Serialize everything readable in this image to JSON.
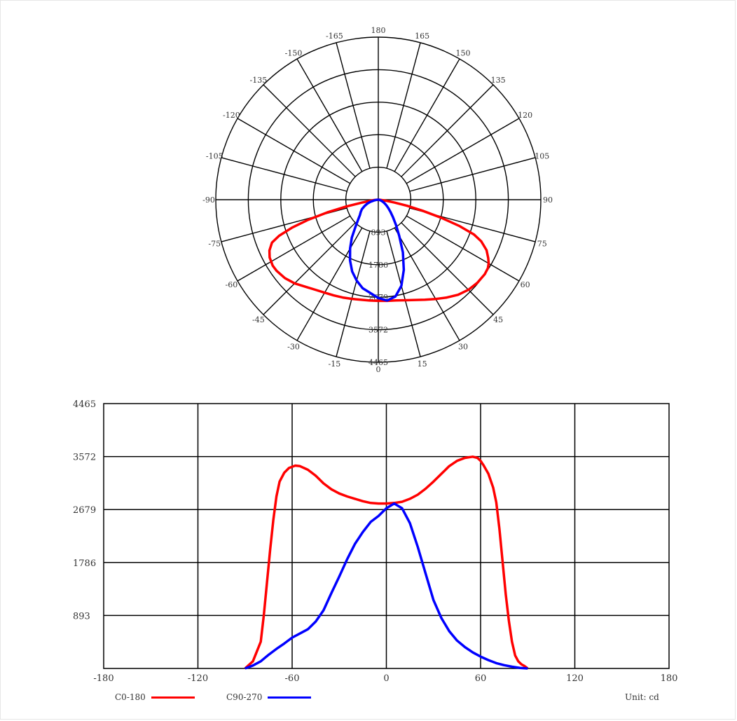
{
  "chart_data": [
    {
      "type": "polar",
      "rings": [
        893,
        1786,
        2679,
        3572,
        4465
      ],
      "ring_labels": [
        "893",
        "1786",
        "2679",
        "3572",
        "4465"
      ],
      "angle_step": 15,
      "angle_labels": [
        {
          "angle": 0,
          "text": "0"
        },
        {
          "angle": 15,
          "text": "15"
        },
        {
          "angle": 30,
          "text": "30"
        },
        {
          "angle": 45,
          "text": "45"
        },
        {
          "angle": 60,
          "text": "60"
        },
        {
          "angle": 75,
          "text": "75"
        },
        {
          "angle": 90,
          "text": "90"
        },
        {
          "angle": 105,
          "text": "105"
        },
        {
          "angle": 120,
          "text": "120"
        },
        {
          "angle": 135,
          "text": "135"
        },
        {
          "angle": 150,
          "text": "150"
        },
        {
          "angle": 165,
          "text": "165"
        },
        {
          "angle": 180,
          "text": "180"
        },
        {
          "angle": -15,
          "text": "-15"
        },
        {
          "angle": -30,
          "text": "-30"
        },
        {
          "angle": -45,
          "text": "-45"
        },
        {
          "angle": -60,
          "text": "-60"
        },
        {
          "angle": -75,
          "text": "-75"
        },
        {
          "angle": -90,
          "text": "-90"
        },
        {
          "angle": -105,
          "text": "-105"
        },
        {
          "angle": -120,
          "text": "-120"
        },
        {
          "angle": -135,
          "text": "-135"
        },
        {
          "angle": -150,
          "text": "-150"
        },
        {
          "angle": -165,
          "text": "-165"
        }
      ],
      "series_ref": "shared"
    },
    {
      "type": "line",
      "xlim": [
        -180,
        180
      ],
      "ylim": [
        0,
        4465
      ],
      "xticks": [
        -180,
        -120,
        -60,
        0,
        60,
        120,
        180
      ],
      "xtick_labels": [
        "-180",
        "-120",
        "-60",
        "0",
        "60",
        "120",
        "180"
      ],
      "yticks": [
        893,
        1786,
        2679,
        3572,
        4465
      ],
      "ytick_labels": [
        "893",
        "1786",
        "2679",
        "3572",
        "4465"
      ],
      "grid": true,
      "series_ref": "shared"
    }
  ],
  "series": [
    {
      "name": "C0-180",
      "color": "#ff0000",
      "x": [
        -90,
        -85,
        -80,
        -78,
        -76,
        -74,
        -72,
        -70,
        -68,
        -65,
        -62,
        -58,
        -55,
        -50,
        -45,
        -40,
        -35,
        -30,
        -25,
        -20,
        -15,
        -10,
        -5,
        0,
        5,
        10,
        15,
        20,
        25,
        30,
        35,
        40,
        45,
        50,
        55,
        58,
        60,
        62,
        65,
        68,
        70,
        72,
        74,
        76,
        78,
        80,
        82,
        84,
        86,
        88,
        90
      ],
      "y": [
        0,
        120,
        450,
        900,
        1450,
        2000,
        2500,
        2900,
        3150,
        3300,
        3380,
        3420,
        3410,
        3350,
        3250,
        3120,
        3020,
        2950,
        2900,
        2860,
        2820,
        2790,
        2780,
        2780,
        2790,
        2810,
        2860,
        2930,
        3030,
        3150,
        3280,
        3410,
        3500,
        3550,
        3570,
        3550,
        3500,
        3420,
        3280,
        3050,
        2800,
        2350,
        1800,
        1250,
        800,
        450,
        220,
        120,
        70,
        40,
        0
      ]
    },
    {
      "name": "C90-270",
      "color": "#0000ff",
      "x": [
        -90,
        -85,
        -80,
        -75,
        -70,
        -65,
        -60,
        -55,
        -50,
        -45,
        -40,
        -35,
        -30,
        -25,
        -20,
        -15,
        -10,
        -5,
        0,
        5,
        10,
        15,
        20,
        25,
        30,
        35,
        40,
        45,
        50,
        55,
        60,
        65,
        70,
        75,
        80,
        85,
        90
      ],
      "y": [
        0,
        50,
        120,
        230,
        330,
        420,
        520,
        590,
        660,
        790,
        980,
        1270,
        1550,
        1840,
        2100,
        2300,
        2470,
        2570,
        2700,
        2780,
        2700,
        2450,
        2050,
        1600,
        1150,
        850,
        630,
        470,
        360,
        270,
        200,
        140,
        90,
        55,
        30,
        10,
        0
      ]
    }
  ],
  "legend": [
    {
      "label": "C0-180",
      "color": "#ff0000"
    },
    {
      "label": "C90-270",
      "color": "#0000ff"
    }
  ],
  "unit_label": "Unit:  cd"
}
